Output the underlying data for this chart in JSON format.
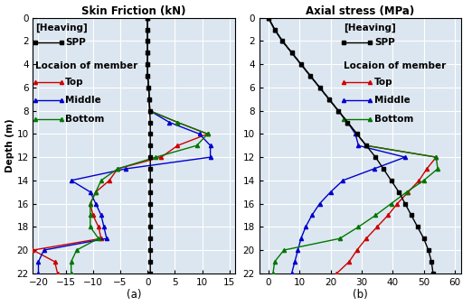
{
  "panel_a": {
    "title": "Skin Friction (kN)",
    "xlabel_bottom": "(a)",
    "ylabel": "Depth (m)",
    "xlim": [
      -21,
      16
    ],
    "xticks": [
      -20,
      -15,
      -10,
      -5,
      0,
      5,
      10,
      15
    ],
    "ylim": [
      22,
      0
    ],
    "yticks": [
      0,
      2,
      4,
      6,
      8,
      10,
      12,
      14,
      16,
      18,
      20,
      22
    ],
    "spp_depth": [
      0,
      1,
      2,
      3,
      4,
      5,
      6,
      7,
      8,
      9,
      10,
      11,
      12,
      13,
      14,
      15,
      16,
      17,
      18,
      19,
      20,
      21,
      22
    ],
    "spp_values": [
      0,
      0,
      0,
      0,
      0,
      0,
      0.2,
      0.3,
      0.4,
      0.5,
      0.5,
      0.5,
      0.5,
      0.5,
      0.5,
      0.5,
      0.5,
      0.5,
      0.5,
      0.5,
      0.5,
      0.5,
      0.5
    ],
    "top_depth": [
      0,
      1,
      2,
      3,
      4,
      5,
      6,
      7,
      8,
      9,
      10,
      11,
      12,
      13,
      14,
      15,
      16,
      17,
      18,
      19,
      20,
      21,
      22
    ],
    "top_values": [
      0,
      0,
      0,
      0,
      0,
      0,
      0.2,
      0.3,
      0.4,
      5.5,
      11.0,
      5.5,
      2.5,
      -5.5,
      -7.0,
      -9.5,
      -10.5,
      -10.0,
      -9.0,
      -8.5,
      -21.0,
      -17.0,
      -16.5
    ],
    "mid_depth": [
      0,
      1,
      2,
      3,
      4,
      5,
      6,
      7,
      8,
      9,
      10,
      11,
      12,
      13,
      14,
      15,
      16,
      17,
      18,
      19,
      20,
      21,
      22
    ],
    "mid_values": [
      0,
      0,
      0,
      0,
      0,
      0,
      0.2,
      0.3,
      0.4,
      4.0,
      9.5,
      11.5,
      11.5,
      -4.0,
      -14.0,
      -10.5,
      -9.5,
      -8.5,
      -8.0,
      -7.5,
      -19.0,
      -20.0,
      -20.0
    ],
    "bot_depth": [
      0,
      1,
      2,
      3,
      4,
      5,
      6,
      7,
      8,
      9,
      10,
      11,
      12,
      13,
      14,
      15,
      16,
      17,
      18,
      19,
      20,
      21,
      22
    ],
    "bot_values": [
      0,
      0,
      0,
      0,
      0,
      0,
      0.2,
      0.3,
      0.4,
      5.5,
      11.0,
      9.0,
      1.5,
      -5.5,
      -8.5,
      -9.5,
      -10.5,
      -10.5,
      -10.5,
      -9.0,
      -13.0,
      -14.0,
      -14.0
    ]
  },
  "panel_b": {
    "title": "Axial stress (MPa)",
    "xlabel_bottom": "(b)",
    "ylabel": "Depth (m)",
    "xlim": [
      -3,
      62
    ],
    "xticks": [
      0,
      10,
      20,
      30,
      40,
      50,
      60
    ],
    "ylim": [
      22,
      0
    ],
    "yticks": [
      0,
      2,
      4,
      6,
      8,
      10,
      12,
      14,
      16,
      18,
      20,
      22
    ],
    "spp_depth": [
      0,
      1,
      2,
      3,
      4,
      5,
      6,
      7,
      8,
      9,
      10,
      11,
      12,
      13,
      14,
      15,
      16,
      17,
      18,
      19,
      20,
      21,
      22
    ],
    "spp_values": [
      0,
      2.0,
      4.5,
      7.5,
      10.5,
      13.5,
      16.5,
      19.5,
      22.5,
      25.5,
      28.5,
      31.5,
      34.5,
      37.0,
      39.5,
      42.0,
      44.0,
      46.0,
      48.0,
      50.0,
      51.5,
      52.5,
      53.0
    ],
    "top_depth": [
      0,
      1,
      2,
      3,
      4,
      5,
      6,
      7,
      8,
      9,
      10,
      11,
      12,
      13,
      14,
      15,
      16,
      17,
      18,
      19,
      20,
      21,
      22
    ],
    "top_values": [
      0,
      2.0,
      4.5,
      7.5,
      10.5,
      13.5,
      16.5,
      19.5,
      22.5,
      25.5,
      28.5,
      31.5,
      54.0,
      51.0,
      48.5,
      45.0,
      41.5,
      38.5,
      35.0,
      31.5,
      28.5,
      26.0,
      22.0
    ],
    "mid_depth": [
      0,
      1,
      2,
      3,
      4,
      5,
      6,
      7,
      8,
      9,
      10,
      11,
      12,
      13,
      14,
      15,
      16,
      17,
      18,
      19,
      20,
      21,
      22
    ],
    "mid_values": [
      0,
      2.0,
      4.5,
      7.5,
      10.5,
      13.5,
      16.5,
      19.5,
      22.5,
      25.5,
      28.0,
      29.0,
      44.0,
      34.0,
      24.0,
      20.0,
      16.5,
      14.0,
      12.0,
      10.5,
      9.5,
      8.5,
      7.5
    ],
    "bot_depth": [
      0,
      1,
      2,
      3,
      4,
      5,
      6,
      7,
      8,
      9,
      10,
      11,
      12,
      13,
      14,
      15,
      16,
      17,
      18,
      19,
      20,
      21,
      22
    ],
    "bot_values": [
      0,
      2.0,
      4.5,
      7.5,
      10.5,
      13.5,
      16.5,
      19.5,
      22.5,
      25.5,
      28.5,
      31.5,
      54.0,
      54.5,
      50.0,
      44.5,
      39.5,
      34.5,
      29.0,
      23.0,
      5.0,
      2.0,
      1.5
    ]
  },
  "color_spp": "#000000",
  "color_top": "#CC0000",
  "color_mid": "#0000CC",
  "color_bot": "#007700",
  "bg_color": "#dce6f0",
  "grid_color": "#ffffff",
  "font_size": 7.5,
  "title_font_size": 8.5,
  "marker_size": 3.0,
  "line_width": 1.0
}
